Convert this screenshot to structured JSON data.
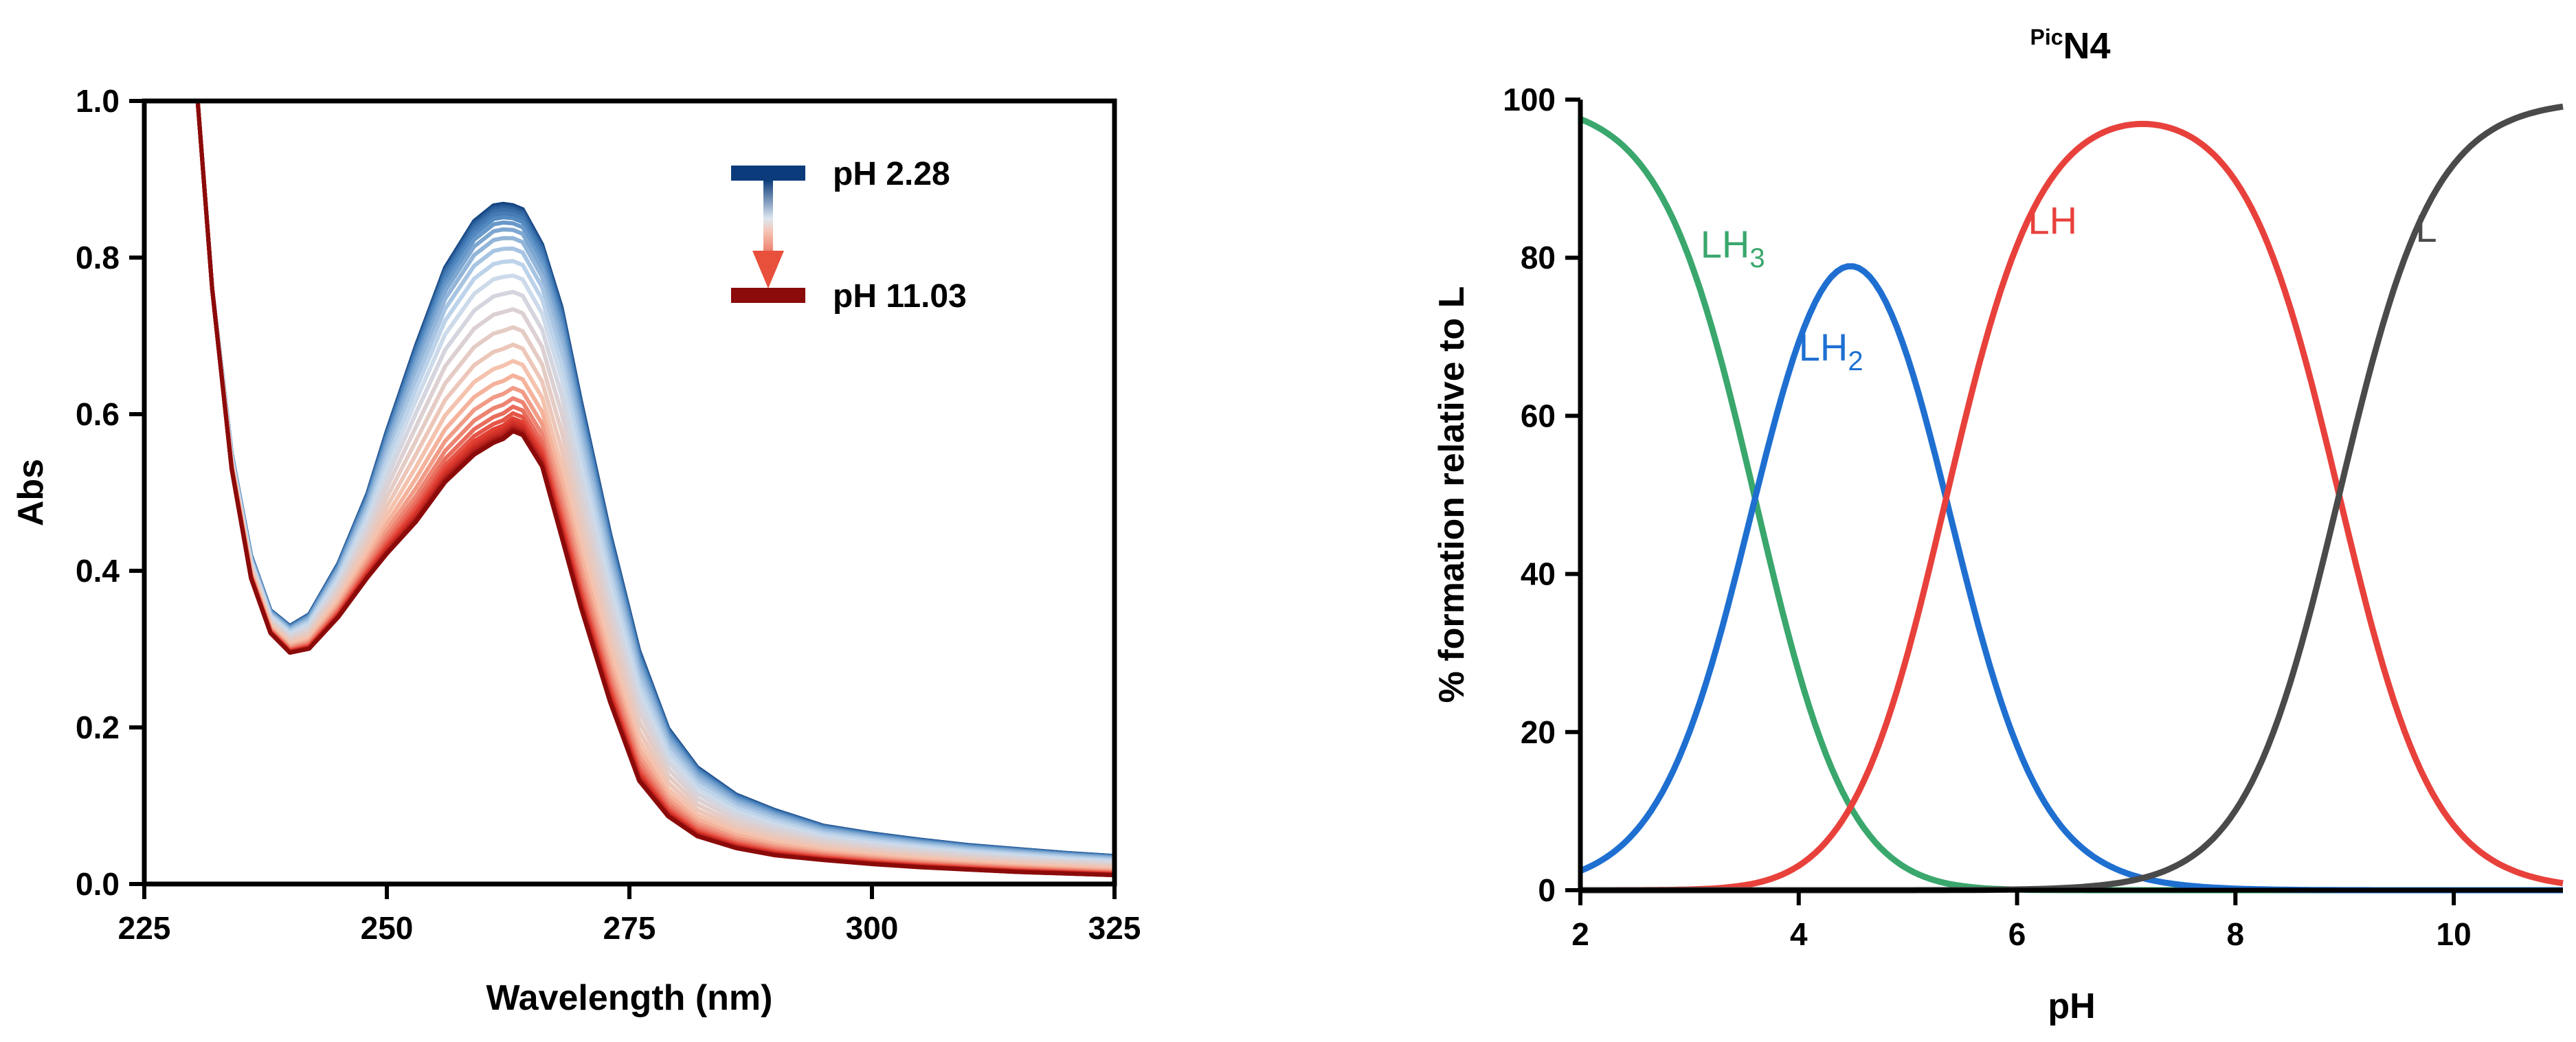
{
  "chart_data": [
    {
      "type": "line",
      "xlabel": "Wavelength (nm)",
      "ylabel": "Abs",
      "xlim": [
        225,
        325
      ],
      "ylim": [
        0,
        1.0
      ],
      "xticks": [
        "225",
        "250",
        "275",
        "300",
        "325"
      ],
      "yticks": [
        "0.0",
        "0.2",
        "0.4",
        "0.6",
        "0.8",
        "1.0"
      ],
      "legend": {
        "placement": "top-right",
        "start_label": "pH 2.28",
        "end_label": "pH 11.03",
        "start_color": "#0b3b7a",
        "end_color": "#8b0a0a"
      },
      "spectra": {
        "count": 30,
        "start_pH": 2.28,
        "end_pH": 11.03,
        "x": [
          230.5,
          232,
          234,
          236,
          238,
          240,
          242,
          245,
          248,
          250,
          253,
          256,
          259,
          261,
          262,
          263,
          264,
          266,
          268,
          270,
          273,
          276,
          279,
          282,
          286,
          290,
          295,
          300,
          305,
          310,
          315,
          320,
          325
        ],
        "first": [
          1.0,
          0.76,
          0.55,
          0.42,
          0.35,
          0.33,
          0.345,
          0.41,
          0.5,
          0.58,
          0.69,
          0.79,
          0.85,
          0.87,
          0.872,
          0.87,
          0.865,
          0.82,
          0.74,
          0.62,
          0.45,
          0.3,
          0.2,
          0.15,
          0.115,
          0.095,
          0.075,
          0.065,
          0.057,
          0.05,
          0.045,
          0.04,
          0.036
        ],
        "last": [
          1.0,
          0.76,
          0.53,
          0.39,
          0.32,
          0.295,
          0.3,
          0.34,
          0.39,
          0.42,
          0.46,
          0.51,
          0.545,
          0.56,
          0.565,
          0.575,
          0.57,
          0.53,
          0.44,
          0.35,
          0.23,
          0.13,
          0.085,
          0.06,
          0.045,
          0.036,
          0.03,
          0.025,
          0.021,
          0.018,
          0.015,
          0.013,
          0.011
        ]
      }
    },
    {
      "type": "line",
      "title": "N4",
      "title_superscript": "Pic",
      "xlabel": "pH",
      "ylabel": "% formation relative to L",
      "xlim": [
        2,
        11
      ],
      "ylim": [
        0,
        100
      ],
      "xticks": [
        "2",
        "4",
        "6",
        "8",
        "10"
      ],
      "yticks": [
        "0",
        "20",
        "40",
        "60",
        "80",
        "100"
      ],
      "pKa": [
        3.6,
        5.35,
        8.95
      ],
      "series": [
        {
          "name": "LH",
          "subscript": "3",
          "color": "#3aa76d",
          "label_at": [
            3.1,
            80
          ]
        },
        {
          "name": "LH",
          "subscript": "2",
          "color": "#1f6fd1",
          "label_at": [
            4.0,
            67
          ]
        },
        {
          "name": "LH",
          "subscript": "",
          "color": "#e8413c",
          "label_at": [
            6.1,
            83
          ]
        },
        {
          "name": "L",
          "subscript": "",
          "color": "#4a4a4a",
          "label_at": [
            9.65,
            82
          ]
        }
      ]
    }
  ]
}
